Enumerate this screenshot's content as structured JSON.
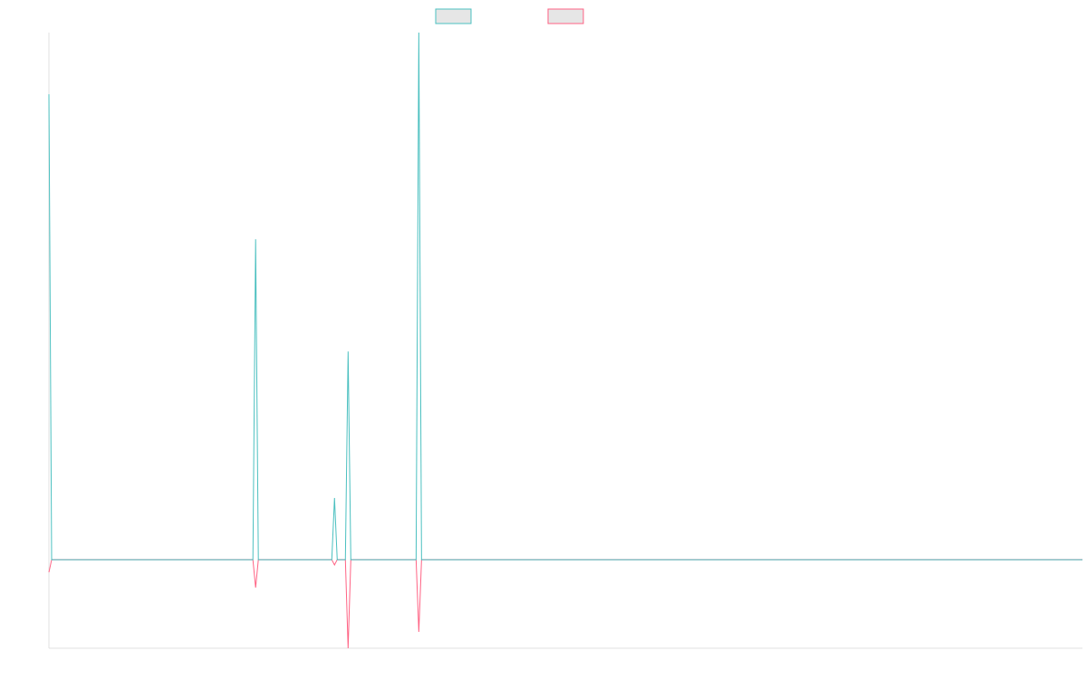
{
  "chart_data": {
    "type": "line",
    "x": [
      0,
      1,
      75,
      76,
      77,
      104,
      105,
      106,
      109,
      110,
      111,
      135,
      136,
      137,
      380
    ],
    "xlim": [
      0,
      380
    ],
    "ylim": [
      -16.8,
      100
    ],
    "series": [
      {
        "color": "#4bc0c0",
        "values": [
          88.3,
          0,
          0,
          60.8,
          0,
          0,
          11.7,
          0,
          0,
          39.5,
          0,
          0,
          100,
          0,
          0
        ]
      },
      {
        "color": "#ff6384",
        "values": [
          -2.4,
          0,
          0,
          -5.3,
          0,
          0,
          -1.0,
          0,
          0,
          -16.8,
          0,
          0,
          -13.7,
          0,
          0
        ]
      }
    ]
  }
}
